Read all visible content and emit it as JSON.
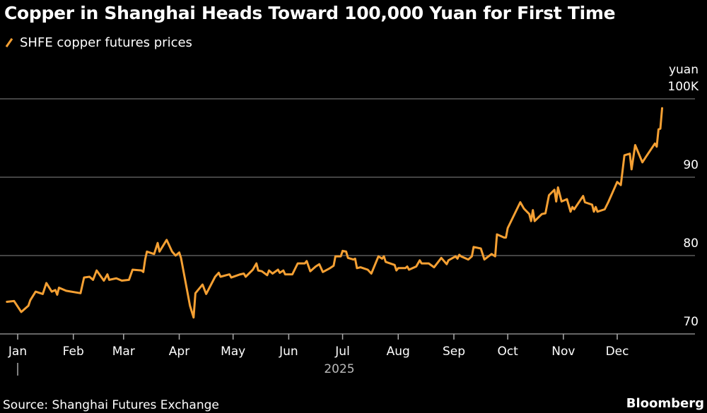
{
  "chart_data": {
    "type": "line",
    "title": "Copper in Shanghai Heads Toward 100,000 Yuan for First Time",
    "legend": {
      "placement": "top-left",
      "entries": [
        "SHFE copper futures prices"
      ]
    },
    "ylabel": "yuan",
    "ylim": [
      70,
      100
    ],
    "yticks": [
      70,
      80,
      90,
      100
    ],
    "ytick_labels": [
      "70",
      "80",
      "90",
      "100K"
    ],
    "y_axis_position": "right",
    "grid": true,
    "xlim": [
      "2024-12-24",
      "2025-12-31"
    ],
    "xtick_labels": [
      "Jan",
      "Feb",
      "Mar",
      "Apr",
      "May",
      "Jun",
      "Jul",
      "Aug",
      "Sep",
      "Oct",
      "Nov",
      "Dec"
    ],
    "xtick_dates": [
      "2025-01-01",
      "2025-02-01",
      "2025-03-01",
      "2025-04-01",
      "2025-05-01",
      "2025-06-01",
      "2025-07-01",
      "2025-08-01",
      "2025-09-01",
      "2025-10-01",
      "2025-11-01",
      "2025-12-01"
    ],
    "year_label": "2025",
    "series": [
      {
        "name": "SHFE copper futures prices",
        "color": "#f5a033",
        "unit": "thousand yuan",
        "x": [
          "2024-12-26",
          "2024-12-30",
          "2025-01-03",
          "2025-01-07",
          "2025-01-08",
          "2025-01-11",
          "2025-01-15",
          "2025-01-17",
          "2025-01-20",
          "2025-01-22",
          "2025-01-23",
          "2025-01-24",
          "2025-01-28",
          "2025-02-05",
          "2025-02-07",
          "2025-02-10",
          "2025-02-12",
          "2025-02-14",
          "2025-02-18",
          "2025-02-20",
          "2025-02-21",
          "2025-02-25",
          "2025-02-28",
          "2025-03-04",
          "2025-03-06",
          "2025-03-11",
          "2025-03-12",
          "2025-03-13",
          "2025-03-14",
          "2025-03-18",
          "2025-03-20",
          "2025-03-21",
          "2025-03-25",
          "2025-03-28",
          "2025-03-30",
          "2025-04-01",
          "2025-04-02",
          "2025-04-07",
          "2025-04-09",
          "2025-04-10",
          "2025-04-14",
          "2025-04-16",
          "2025-04-21",
          "2025-04-23",
          "2025-04-24",
          "2025-04-29",
          "2025-04-30",
          "2025-05-05",
          "2025-05-07",
          "2025-05-08",
          "2025-05-12",
          "2025-05-14",
          "2025-05-15",
          "2025-05-17",
          "2025-05-20",
          "2025-05-21",
          "2025-05-23",
          "2025-05-26",
          "2025-05-27",
          "2025-05-29",
          "2025-05-30",
          "2025-06-03",
          "2025-06-06",
          "2025-06-10",
          "2025-06-11",
          "2025-06-13",
          "2025-06-16",
          "2025-06-18",
          "2025-06-20",
          "2025-06-24",
          "2025-06-26",
          "2025-06-27",
          "2025-06-30",
          "2025-07-01",
          "2025-07-03",
          "2025-07-04",
          "2025-07-07",
          "2025-07-08",
          "2025-07-09",
          "2025-07-11",
          "2025-07-15",
          "2025-07-17",
          "2025-07-21",
          "2025-07-23",
          "2025-07-24",
          "2025-07-25",
          "2025-07-30",
          "2025-07-31",
          "2025-08-01",
          "2025-08-05",
          "2025-08-06",
          "2025-08-07",
          "2025-08-11",
          "2025-08-13",
          "2025-08-14",
          "2025-08-18",
          "2025-08-21",
          "2025-08-25",
          "2025-08-28",
          "2025-08-29",
          "2025-09-02",
          "2025-09-03",
          "2025-09-04",
          "2025-09-05",
          "2025-09-09",
          "2025-09-11",
          "2025-09-12",
          "2025-09-16",
          "2025-09-18",
          "2025-09-22",
          "2025-09-24",
          "2025-09-25",
          "2025-09-29",
          "2025-09-30",
          "2025-10-01",
          "2025-10-08",
          "2025-10-10",
          "2025-10-13",
          "2025-10-14",
          "2025-10-15",
          "2025-10-16",
          "2025-10-20",
          "2025-10-22",
          "2025-10-24",
          "2025-10-27",
          "2025-10-28",
          "2025-10-29",
          "2025-10-31",
          "2025-11-03",
          "2025-11-05",
          "2025-11-06",
          "2025-11-07",
          "2025-11-12",
          "2025-11-13",
          "2025-11-17",
          "2025-11-18",
          "2025-11-19",
          "2025-11-20",
          "2025-11-24",
          "2025-11-26",
          "2025-12-01",
          "2025-12-03",
          "2025-12-05",
          "2025-12-08",
          "2025-12-09",
          "2025-12-11",
          "2025-12-15",
          "2025-12-17",
          "2025-12-22",
          "2025-12-23",
          "2025-12-24",
          "2025-12-25",
          "2025-12-26"
        ],
        "values": [
          74.1,
          74.2,
          72.8,
          73.6,
          74.3,
          75.4,
          75.1,
          76.5,
          75.4,
          75.6,
          75.0,
          75.9,
          75.5,
          75.2,
          77.2,
          77.3,
          76.9,
          78.1,
          76.8,
          77.6,
          76.9,
          77.1,
          76.8,
          76.9,
          78.2,
          78.1,
          77.9,
          79.5,
          80.5,
          80.2,
          81.6,
          80.5,
          82.0,
          80.5,
          80.0,
          80.4,
          79.7,
          73.6,
          72.1,
          75.2,
          76.3,
          75.1,
          77.3,
          77.8,
          77.3,
          77.6,
          77.2,
          77.6,
          77.7,
          77.3,
          78.2,
          79.0,
          78.1,
          78.0,
          77.5,
          78.1,
          77.7,
          78.2,
          77.8,
          78.1,
          77.6,
          77.6,
          79.0,
          79.0,
          79.3,
          78.0,
          78.6,
          78.9,
          77.9,
          78.4,
          78.7,
          79.9,
          79.9,
          80.6,
          80.5,
          79.7,
          79.5,
          79.6,
          78.4,
          78.5,
          78.2,
          77.7,
          79.9,
          79.6,
          79.9,
          79.2,
          78.8,
          78.1,
          78.4,
          78.4,
          78.6,
          78.2,
          78.6,
          79.4,
          79.0,
          79.0,
          78.5,
          79.7,
          78.9,
          79.4,
          79.9,
          79.6,
          80.1,
          79.9,
          79.5,
          79.9,
          81.1,
          80.9,
          79.5,
          80.2,
          79.9,
          82.7,
          82.3,
          82.3,
          83.5,
          86.8,
          86.0,
          85.3,
          84.4,
          85.8,
          84.4,
          85.3,
          85.4,
          87.7,
          88.4,
          86.9,
          88.7,
          86.9,
          87.2,
          85.6,
          86.2,
          85.9,
          87.6,
          86.8,
          86.5,
          85.6,
          86.2,
          85.6,
          85.9,
          86.8,
          89.4,
          89.0,
          92.8,
          93.0,
          91.0,
          94.1,
          91.9,
          92.6,
          94.3,
          93.9,
          96.1,
          96.2,
          98.8
        ]
      }
    ],
    "source": "Source: Shanghai Futures Exchange",
    "brand": "Bloomberg"
  },
  "colors": {
    "background": "#000000",
    "line": "#f5a033",
    "grid": "#5a5a5a",
    "text": "#ffffff"
  }
}
